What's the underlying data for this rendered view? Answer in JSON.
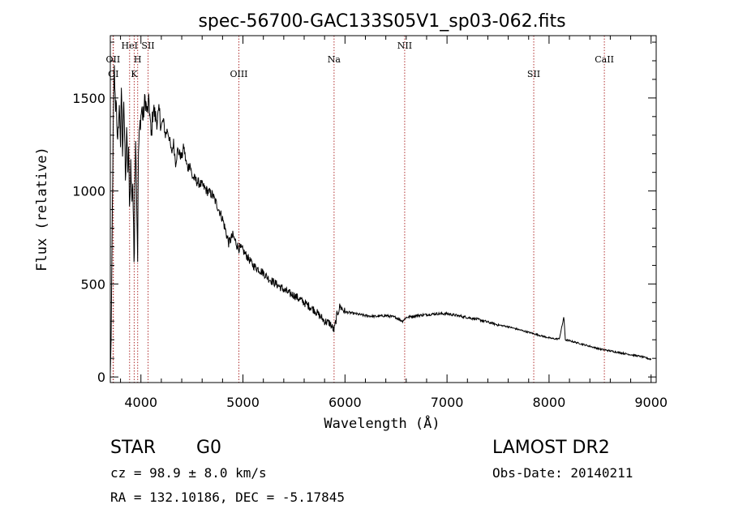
{
  "chart_data": {
    "type": "line",
    "title": "spec-56700-GAC133S05V1_sp03-062.fits",
    "xlabel": "Wavelength (Å)",
    "ylabel": "Flux (relative)",
    "xlim": [
      3700,
      9050
    ],
    "ylim": [
      -30,
      1835
    ],
    "xticks": [
      4000,
      5000,
      6000,
      7000,
      8000,
      9000
    ],
    "yticks": [
      0,
      500,
      1000,
      1500
    ],
    "xtick_labels": [
      "4000",
      "5000",
      "6000",
      "7000",
      "8000",
      "9000"
    ],
    "ytick_labels": [
      "0",
      "500",
      "1000",
      "1500"
    ],
    "grid": false,
    "line_color": "#000000",
    "marker_color": "#b03030",
    "spectral_lines": [
      {
        "label": "OII",
        "wavelength": 3727,
        "row": 2
      },
      {
        "label": "OI",
        "wavelength": 3730,
        "row": 3
      },
      {
        "label": "HeI",
        "wavelength": 3889,
        "row": 1
      },
      {
        "label": "H",
        "wavelength": 3968,
        "row": 2
      },
      {
        "label": "K",
        "wavelength": 3934,
        "row": 3
      },
      {
        "label": "SII",
        "wavelength": 4070,
        "row": 1
      },
      {
        "label": "OIII",
        "wavelength": 4960,
        "row": 3
      },
      {
        "label": "Na",
        "wavelength": 5893,
        "row": 2
      },
      {
        "label": "NII",
        "wavelength": 6585,
        "row": 1
      },
      {
        "label": "SII",
        "wavelength": 7850,
        "row": 3
      },
      {
        "label": "CaII",
        "wavelength": 8542,
        "row": 2
      }
    ],
    "series": [
      {
        "x": [
          3700,
          3710,
          3720,
          3730,
          3740,
          3750,
          3760,
          3770,
          3780,
          3790,
          3800,
          3810,
          3820,
          3830,
          3840,
          3850,
          3860,
          3870,
          3880,
          3890,
          3900,
          3910,
          3920,
          3930,
          3934,
          3940,
          3950,
          3960,
          3968,
          3975,
          3990,
          4000,
          4010,
          4020,
          4040,
          4060,
          4080,
          4101,
          4120,
          4140,
          4160,
          4180,
          4200,
          4220,
          4240,
          4260,
          4280,
          4300,
          4320,
          4340,
          4360,
          4380,
          4400,
          4420,
          4440,
          4460,
          4480,
          4500,
          4550,
          4600,
          4650,
          4700,
          4750,
          4800,
          4861,
          4900,
          4950,
          5000,
          5050,
          5100,
          5150,
          5200,
          5250,
          5300,
          5350,
          5400,
          5450,
          5500,
          5550,
          5600,
          5650,
          5700,
          5750,
          5800,
          5850,
          5893,
          5920,
          5950,
          6000,
          6100,
          6200,
          6300,
          6400,
          6500,
          6563,
          6600,
          6700,
          6800,
          6900,
          7000,
          7100,
          7200,
          7300,
          7400,
          7500,
          7600,
          7700,
          7800,
          7900,
          8000,
          8050,
          8100,
          8130,
          8145,
          8160,
          8200,
          8300,
          8400,
          8500,
          8600,
          8700,
          8800,
          8900,
          9000
        ],
        "y": [
          20,
          250,
          900,
          1400,
          1650,
          1450,
          1500,
          1200,
          1380,
          1450,
          1250,
          1580,
          1150,
          1550,
          1300,
          1000,
          1350,
          1100,
          1200,
          900,
          1150,
          950,
          1050,
          700,
          550,
          1050,
          1300,
          900,
          650,
          1200,
          1350,
          1400,
          1450,
          1380,
          1500,
          1420,
          1480,
          1280,
          1450,
          1400,
          1380,
          1420,
          1350,
          1380,
          1300,
          1330,
          1280,
          1200,
          1260,
          1150,
          1220,
          1200,
          1180,
          1240,
          1160,
          1120,
          1150,
          1080,
          1050,
          1030,
          1000,
          980,
          920,
          850,
          720,
          760,
          700,
          680,
          640,
          600,
          580,
          560,
          530,
          510,
          490,
          470,
          450,
          440,
          420,
          400,
          380,
          360,
          330,
          300,
          290,
          250,
          330,
          380,
          350,
          340,
          330,
          325,
          330,
          320,
          300,
          320,
          330,
          335,
          340,
          340,
          330,
          320,
          310,
          295,
          280,
          270,
          255,
          240,
          225,
          210,
          205,
          205,
          280,
          325,
          200,
          195,
          180,
          165,
          150,
          140,
          130,
          120,
          110,
          95
        ]
      }
    ]
  },
  "info": {
    "object_class": "STAR",
    "subclass": "G0",
    "survey": "LAMOST DR2",
    "redshift": "cz = 98.9 ± 8.0 km/s",
    "obs_date": "Obs-Date: 20140211",
    "coordinates": "RA = 132.10186, DEC =  -5.17845"
  }
}
